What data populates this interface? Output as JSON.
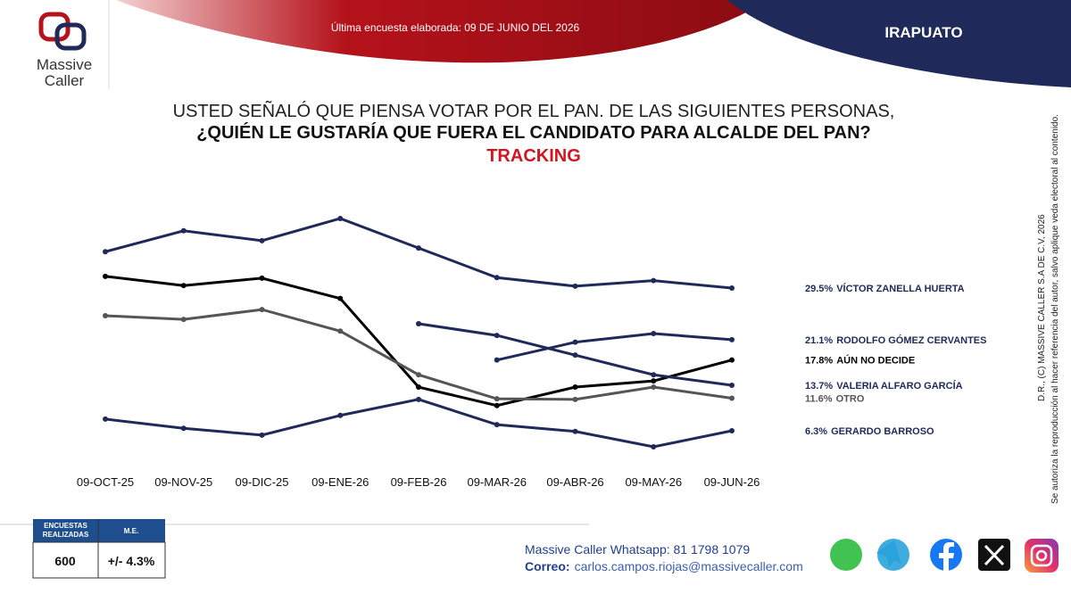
{
  "header": {
    "survey_date": "Última encuesta elaborada: 09 DE JUNIO DEL 2026",
    "region": "IRAPUATO",
    "logo_line1": "Massive",
    "logo_line2": "Caller"
  },
  "chart_data": {
    "type": "line",
    "title_lines": [
      "USTED SEÑALÓ QUE PIENSA VOTAR POR EL PAN. DE LAS SIGUIENTES PERSONAS,",
      "¿QUIÉN LE GUSTARÍA QUE FUERA EL CANDIDATO PARA ALCALDE DEL PAN?",
      "TRACKING"
    ],
    "categories": [
      "09-OCT-25",
      "09-NOV-25",
      "09-DIC-25",
      "09-ENE-26",
      "09-FEB-26",
      "09-MAR-26",
      "09-ABR-26",
      "09-MAY-26",
      "09-JUN-26"
    ],
    "ylim": [
      0,
      45
    ],
    "series": [
      {
        "name": "VÍCTOR ZANELLA HUERTA",
        "color": "#1f2a5a",
        "values": [
          35.4,
          38.8,
          37.2,
          40.8,
          36.0,
          31.2,
          29.8,
          30.7,
          29.5
        ],
        "value_labels": [
          null,
          null,
          null,
          null,
          null,
          null,
          null,
          null,
          "29.5%"
        ]
      },
      {
        "name": "RODOLFO GÓMEZ CERVANTES",
        "color": "#1f2a5a",
        "values": [
          null,
          null,
          null,
          null,
          null,
          17.8,
          20.7,
          22.1,
          21.1
        ],
        "value_labels": [
          null,
          null,
          null,
          null,
          null,
          null,
          null,
          null,
          "21.1%"
        ]
      },
      {
        "name": "AÚN NO DECIDE",
        "color": "#000000",
        "values": [
          31.4,
          29.9,
          31.1,
          27.8,
          13.4,
          10.4,
          13.4,
          14.4,
          17.8
        ],
        "value_labels": [
          null,
          null,
          null,
          null,
          null,
          null,
          null,
          null,
          "17.8%"
        ]
      },
      {
        "name": "VALERIA ALFARO GARCÍA",
        "color": "#1f2a5a",
        "values": [
          null,
          null,
          null,
          null,
          23.7,
          21.8,
          18.6,
          15.4,
          13.7
        ],
        "value_labels": [
          null,
          null,
          null,
          null,
          null,
          null,
          null,
          null,
          "13.7%"
        ]
      },
      {
        "name": "OTRO",
        "color": "#555555",
        "values": [
          25.0,
          24.4,
          26.0,
          22.5,
          15.4,
          11.5,
          11.4,
          13.4,
          11.6
        ],
        "value_labels": [
          null,
          null,
          null,
          null,
          null,
          null,
          null,
          null,
          "11.6%"
        ]
      },
      {
        "name": "GERARDO BARROSO",
        "color": "#1f2a5a",
        "values": [
          8.2,
          6.7,
          5.6,
          8.8,
          11.4,
          7.3,
          6.2,
          3.7,
          6.3
        ],
        "value_labels": [
          null,
          null,
          null,
          null,
          null,
          null,
          null,
          null,
          "6.3%"
        ]
      }
    ]
  },
  "table": {
    "headers": [
      "ENCUESTAS REALIZADAS",
      "M.E."
    ],
    "row": [
      "600",
      "+/- 4.3%"
    ]
  },
  "footer": {
    "whatsapp": "Massive Caller Whatsapp: 81 1798 1079",
    "email_label": "Correo:",
    "email": "carlos.campos.riojas@massivecaller.com"
  },
  "side_text": [
    "D.R., (C) MASSIVE CALLER S.A DE C.V, 2026",
    "Se autoriza la reproducción al hacer referencia del autor, salvo aplique veda electoral al contenido."
  ]
}
